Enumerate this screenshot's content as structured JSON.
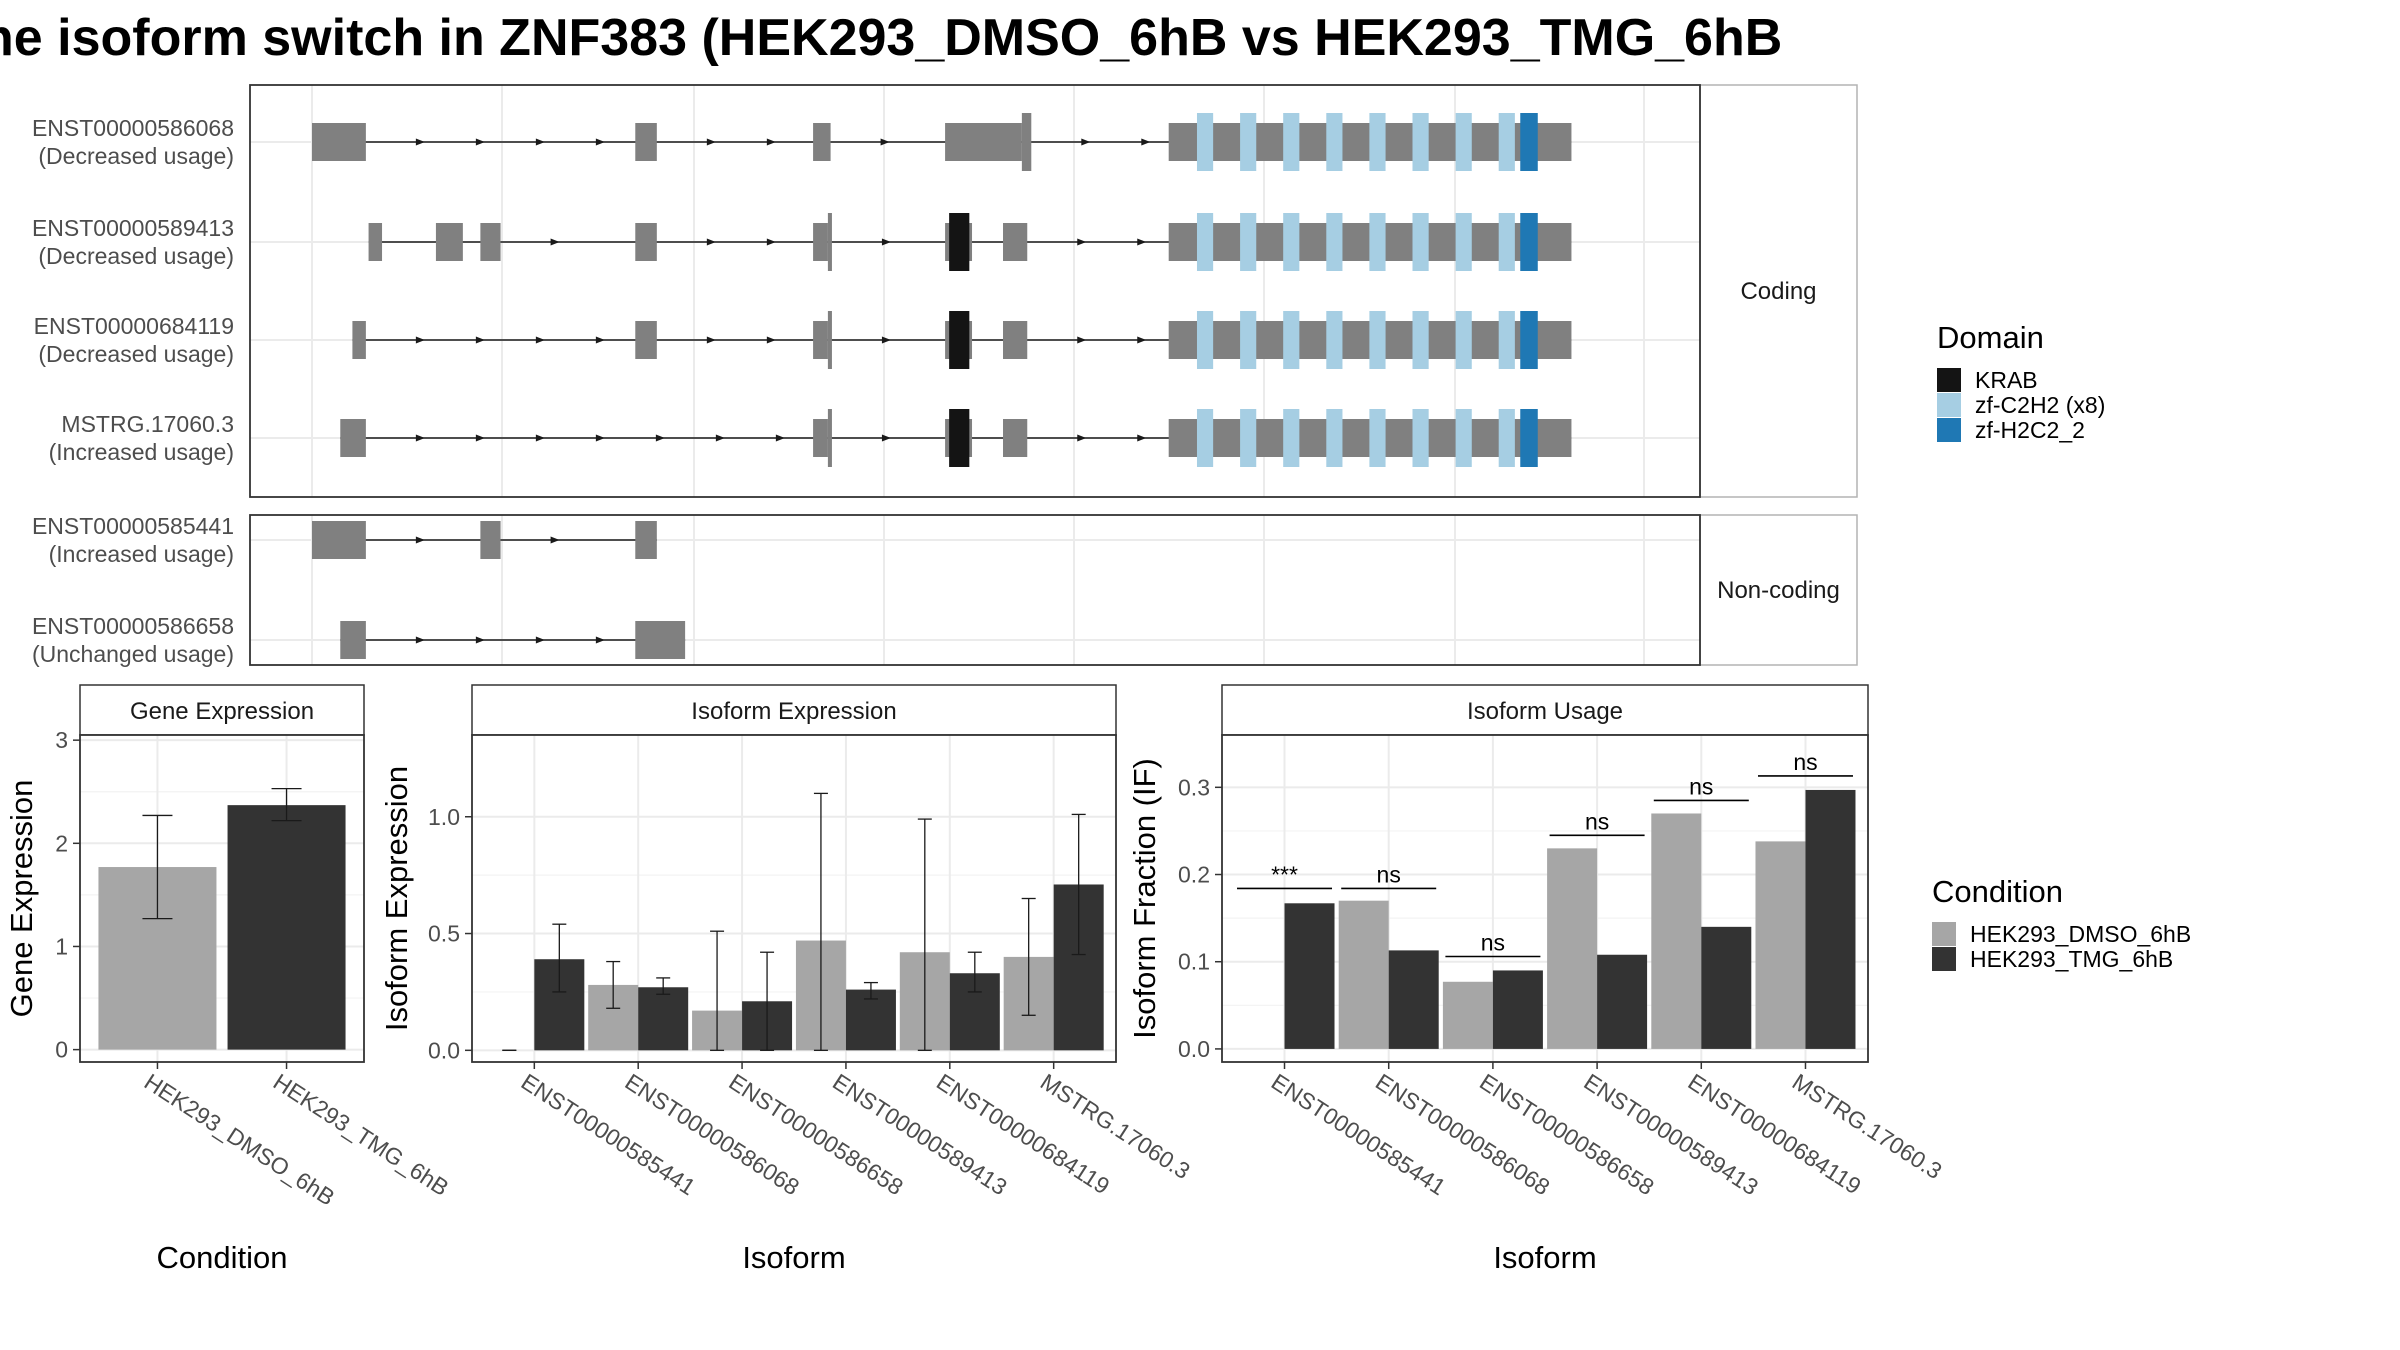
{
  "title": "he isoform switch in ZNF383 (HEK293_DMSO_6hB vs HEK293_TMG_6hB",
  "colors": {
    "exon": "#808080",
    "krab": "#141414",
    "zf_c2h2": "#a6cee3",
    "zf_h2c2": "#1f78b4",
    "dmso": "#a6a6a6",
    "tmg": "#333333",
    "grid": "#ebebeb",
    "border": "#333333"
  },
  "chart_data": [
    {
      "type": "transcript-structure",
      "facets": [
        "Coding",
        "Non-coding"
      ],
      "legend": {
        "title": "Domain",
        "entries": [
          {
            "label": "KRAB",
            "color": "#141414"
          },
          {
            "label": "zf-C2H2 (x8)",
            "color": "#a6cee3"
          },
          {
            "label": "zf-H2C2_2",
            "color": "#1f78b4"
          }
        ]
      },
      "transcripts": [
        {
          "facet": "Coding",
          "id": "ENST00000586068",
          "usage": "(Decreased usage)",
          "exons": [
            [
              0.0,
              0.04,
              1
            ],
            [
              0.24,
              0.256,
              1
            ],
            [
              0.372,
              0.385,
              1
            ],
            [
              0.47,
              0.527,
              1
            ],
            [
              0.527,
              0.534,
              2
            ],
            [
              0.636,
              0.935,
              1
            ]
          ],
          "domains": [
            {
              "type": "zf_c2h2",
              "cells": [
                [
                  0.657,
                  0.669
                ],
                [
                  0.689,
                  0.701
                ],
                [
                  0.721,
                  0.733
                ],
                [
                  0.753,
                  0.765
                ],
                [
                  0.785,
                  0.797
                ],
                [
                  0.817,
                  0.829
                ],
                [
                  0.849,
                  0.861
                ],
                [
                  0.881,
                  0.893
                ]
              ]
            },
            {
              "type": "zf_h2c2",
              "cells": [
                [
                  0.897,
                  0.91
                ]
              ]
            }
          ]
        },
        {
          "facet": "Coding",
          "id": "ENST00000589413",
          "usage": "(Decreased usage)",
          "exons": [
            [
              0.042,
              0.052,
              1
            ],
            [
              0.092,
              0.112,
              1
            ],
            [
              0.125,
              0.14,
              1
            ],
            [
              0.24,
              0.256,
              1
            ],
            [
              0.372,
              0.383,
              1
            ],
            [
              0.383,
              0.386,
              2
            ],
            [
              0.47,
              0.49,
              1
            ],
            [
              0.513,
              0.531,
              1
            ],
            [
              0.636,
              0.935,
              1
            ]
          ],
          "domains": [
            {
              "type": "krab",
              "cells": [
                [
                  0.473,
                  0.488
                ]
              ]
            },
            {
              "type": "zf_c2h2",
              "cells": [
                [
                  0.657,
                  0.669
                ],
                [
                  0.689,
                  0.701
                ],
                [
                  0.721,
                  0.733
                ],
                [
                  0.753,
                  0.765
                ],
                [
                  0.785,
                  0.797
                ],
                [
                  0.817,
                  0.829
                ],
                [
                  0.849,
                  0.861
                ],
                [
                  0.881,
                  0.893
                ]
              ]
            },
            {
              "type": "zf_h2c2",
              "cells": [
                [
                  0.897,
                  0.91
                ]
              ]
            }
          ]
        },
        {
          "facet": "Coding",
          "id": "ENST00000684119",
          "usage": "(Decreased usage)",
          "exons": [
            [
              0.03,
              0.04,
              1
            ],
            [
              0.24,
              0.256,
              1
            ],
            [
              0.372,
              0.383,
              1
            ],
            [
              0.383,
              0.386,
              2
            ],
            [
              0.47,
              0.49,
              1
            ],
            [
              0.513,
              0.531,
              1
            ],
            [
              0.636,
              0.935,
              1
            ]
          ],
          "domains": [
            {
              "type": "krab",
              "cells": [
                [
                  0.473,
                  0.488
                ]
              ]
            },
            {
              "type": "zf_c2h2",
              "cells": [
                [
                  0.657,
                  0.669
                ],
                [
                  0.689,
                  0.701
                ],
                [
                  0.721,
                  0.733
                ],
                [
                  0.753,
                  0.765
                ],
                [
                  0.785,
                  0.797
                ],
                [
                  0.817,
                  0.829
                ],
                [
                  0.849,
                  0.861
                ],
                [
                  0.881,
                  0.893
                ]
              ]
            },
            {
              "type": "zf_h2c2",
              "cells": [
                [
                  0.897,
                  0.91
                ]
              ]
            }
          ]
        },
        {
          "facet": "Coding",
          "id": "MSTRG.17060.3",
          "usage": "(Increased usage)",
          "exons": [
            [
              0.021,
              0.04,
              1
            ],
            [
              0.372,
              0.383,
              1
            ],
            [
              0.383,
              0.386,
              2
            ],
            [
              0.47,
              0.49,
              1
            ],
            [
              0.513,
              0.531,
              1
            ],
            [
              0.636,
              0.935,
              1
            ]
          ],
          "domains": [
            {
              "type": "krab",
              "cells": [
                [
                  0.473,
                  0.488
                ]
              ]
            },
            {
              "type": "zf_c2h2",
              "cells": [
                [
                  0.657,
                  0.669
                ],
                [
                  0.689,
                  0.701
                ],
                [
                  0.721,
                  0.733
                ],
                [
                  0.753,
                  0.765
                ],
                [
                  0.785,
                  0.797
                ],
                [
                  0.817,
                  0.829
                ],
                [
                  0.849,
                  0.861
                ],
                [
                  0.881,
                  0.893
                ]
              ]
            },
            {
              "type": "zf_h2c2",
              "cells": [
                [
                  0.897,
                  0.91
                ]
              ]
            }
          ]
        },
        {
          "facet": "Non-coding",
          "id": "ENST00000585441",
          "usage": "(Increased usage)",
          "exons": [
            [
              0.0,
              0.04,
              1
            ],
            [
              0.125,
              0.14,
              1
            ],
            [
              0.24,
              0.256,
              1
            ]
          ],
          "domains": []
        },
        {
          "facet": "Non-coding",
          "id": "ENST00000586658",
          "usage": "(Unchanged usage)",
          "exons": [
            [
              0.021,
              0.04,
              1
            ],
            [
              0.24,
              0.277,
              1
            ]
          ],
          "domains": []
        }
      ]
    },
    {
      "type": "bar",
      "panel": "Gene Expression",
      "xlabel": "Condition",
      "ylabel": "Gene Expression",
      "categories": [
        "HEK293_DMSO_6hB",
        "HEK293_TMG_6hB"
      ],
      "values": [
        1.77,
        2.37
      ],
      "error": [
        [
          1.27,
          2.27
        ],
        [
          2.22,
          2.53
        ]
      ],
      "ylim": [
        -0.12,
        3.05
      ],
      "yticks": [
        0,
        1,
        2,
        3
      ],
      "grid": true
    },
    {
      "type": "bar",
      "panel": "Isoform Expression",
      "xlabel": "Isoform",
      "ylabel": "Isoform Expression",
      "categories": [
        "ENST00000585441",
        "ENST00000586068",
        "ENST00000586658",
        "ENST00000589413",
        "ENST00000684119",
        "MSTRG.17060.3"
      ],
      "series": [
        {
          "name": "HEK293_DMSO_6hB",
          "values": [
            0.0,
            0.28,
            0.17,
            0.47,
            0.42,
            0.4
          ],
          "error": [
            [
              0.0,
              0.0
            ],
            [
              0.18,
              0.38
            ],
            [
              0.0,
              0.51
            ],
            [
              0.0,
              1.1
            ],
            [
              0.0,
              0.99
            ],
            [
              0.15,
              0.65
            ]
          ]
        },
        {
          "name": "HEK293_TMG_6hB",
          "values": [
            0.39,
            0.27,
            0.21,
            0.26,
            0.33,
            0.71
          ],
          "error": [
            [
              0.25,
              0.54
            ],
            [
              0.24,
              0.31
            ],
            [
              0.0,
              0.42
            ],
            [
              0.22,
              0.29
            ],
            [
              0.25,
              0.42
            ],
            [
              0.41,
              1.01
            ]
          ]
        }
      ],
      "ylim": [
        -0.05,
        1.35
      ],
      "yticks": [
        0.0,
        0.5,
        1.0
      ],
      "ytick_labels": [
        "0.0",
        "0.5",
        "1.0"
      ],
      "grid": true
    },
    {
      "type": "bar",
      "panel": "Isoform Usage",
      "xlabel": "Isoform",
      "ylabel": "Isoform Fraction (IF)",
      "categories": [
        "ENST00000585441",
        "ENST00000586068",
        "ENST00000586658",
        "ENST00000589413",
        "ENST00000684119",
        "MSTRG.17060.3"
      ],
      "series": [
        {
          "name": "HEK293_DMSO_6hB",
          "values": [
            0.0,
            0.17,
            0.077,
            0.23,
            0.27,
            0.238
          ]
        },
        {
          "name": "HEK293_TMG_6hB",
          "values": [
            0.167,
            0.113,
            0.09,
            0.108,
            0.14,
            0.297
          ]
        }
      ],
      "significance": [
        "***",
        "ns",
        "ns",
        "ns",
        "ns",
        "ns"
      ],
      "sig_levels": [
        0.184,
        0.184,
        0.106,
        0.245,
        0.285,
        0.313
      ],
      "ylim": [
        -0.015,
        0.36
      ],
      "yticks": [
        0.0,
        0.1,
        0.2,
        0.3
      ],
      "ytick_labels": [
        "0.0",
        "0.1",
        "0.2",
        "0.3"
      ],
      "grid": true,
      "legend": {
        "title": "Condition",
        "entries": [
          {
            "label": "HEK293_DMSO_6hB",
            "color": "#a6a6a6"
          },
          {
            "label": "HEK293_TMG_6hB",
            "color": "#333333"
          }
        ]
      }
    }
  ]
}
